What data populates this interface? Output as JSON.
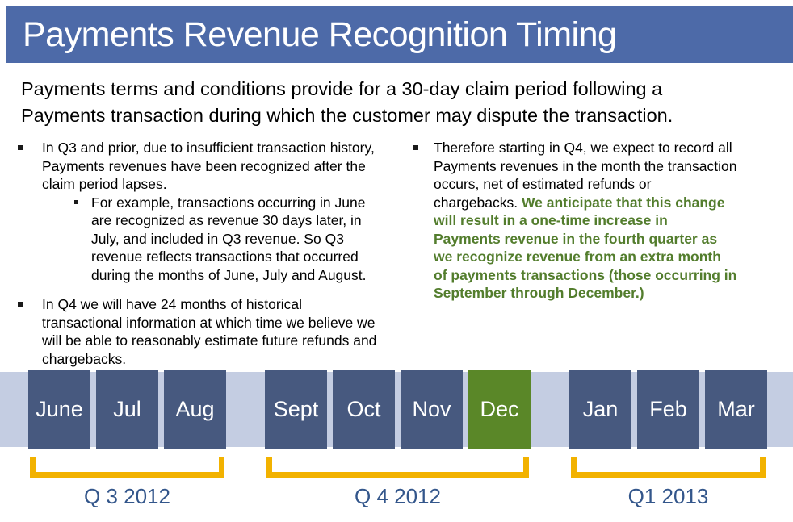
{
  "colors": {
    "slide_bg": "#ffffff",
    "header_bg": "#4d6aa8",
    "header_text": "#ffffff",
    "body_text": "#000000",
    "green_text": "#537d2d",
    "band_bg": "#c4cde2",
    "month_bg": "#47597f",
    "month_text": "#ffffff",
    "month_highlight_bg": "#5a8728",
    "bracket": "#f2b200",
    "quarter_label": "#33568b"
  },
  "header": {
    "title": "Payments Revenue Recognition Timing"
  },
  "intro": "Payments terms and conditions provide for a 30-day claim period following a Payments transaction during which the customer may dispute the transaction.",
  "columns": {
    "left": {
      "bullet1": "In Q3 and prior, due to insufficient transaction history, Payments revenues have been recognized after the claim period lapses.",
      "sub_bullet": "For example, transactions occurring in June are recognized as revenue 30 days later, in July, and included in Q3 revenue. So Q3 revenue reflects transactions that occurred during the months of June, July and August.",
      "bullet2": "In Q4 we will have 24 months of historical transactional information at which time we believe we will be able to reasonably estimate future refunds and chargebacks."
    },
    "right": {
      "bullet_black": "Therefore starting in Q4, we expect to record all Payments revenues in the month the transaction occurs, net of estimated refunds or chargebacks. ",
      "bullet_green": "We anticipate that this change will result in a one-time increase in Payments revenue in the fourth quarter as we recognize revenue from an extra month of payments transactions (those occurring in September through December.)"
    }
  },
  "timeline": {
    "quarters": [
      {
        "label": "Q 3 2012",
        "months": [
          {
            "name": "June",
            "highlight": false
          },
          {
            "name": "Jul",
            "highlight": false
          },
          {
            "name": "Aug",
            "highlight": false
          }
        ]
      },
      {
        "label": "Q 4 2012",
        "months": [
          {
            "name": "Sept",
            "highlight": false
          },
          {
            "name": "Oct",
            "highlight": false
          },
          {
            "name": "Nov",
            "highlight": false
          },
          {
            "name": "Dec",
            "highlight": true
          }
        ]
      },
      {
        "label": "Q1 2013",
        "months": [
          {
            "name": "Jan",
            "highlight": false
          },
          {
            "name": "Feb",
            "highlight": false
          },
          {
            "name": "Mar",
            "highlight": false
          }
        ]
      }
    ]
  }
}
